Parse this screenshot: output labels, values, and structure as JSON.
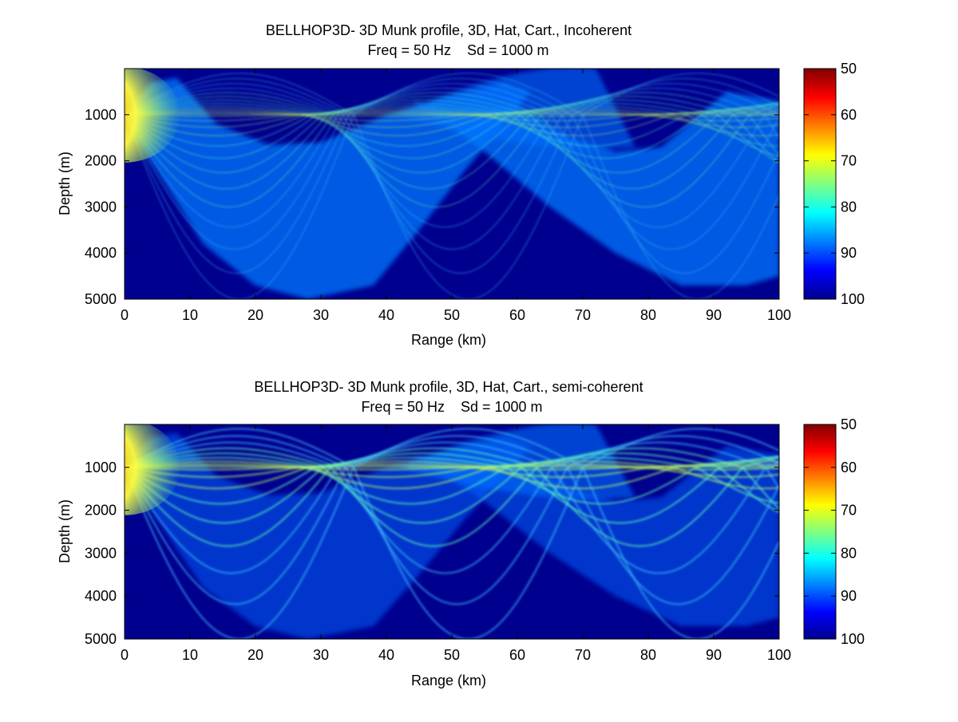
{
  "colors": {
    "background": "#00008f",
    "colormap": "jet",
    "colormap_stops": [
      "#00008f",
      "#0000ff",
      "#0080ff",
      "#00ffff",
      "#80ff80",
      "#ffff00",
      "#ff8000",
      "#ff0000",
      "#800000"
    ]
  },
  "chart_data": [
    {
      "type": "heatmap",
      "title": "BELLHOP3D- 3D Munk profile, 3D, Hat, Cart., Incoherent",
      "subtitle": "Freq = 50 Hz    Sd = 1000 m",
      "xlabel": "Range (km)",
      "ylabel": "Depth (m)",
      "xlim": [
        0,
        100
      ],
      "ylim": [
        0,
        5000
      ],
      "y_reversed": true,
      "xticks": [
        0,
        10,
        20,
        30,
        40,
        50,
        60,
        70,
        80,
        90,
        100
      ],
      "yticks": [
        1000,
        2000,
        3000,
        4000,
        5000
      ],
      "colorbar": {
        "ticks": [
          50,
          60,
          70,
          80,
          90,
          100
        ],
        "clim": [
          50,
          100
        ],
        "reversed": true
      },
      "source": {
        "range_km": 0,
        "depth_m": 1000,
        "peak_loss_db": 50
      },
      "caustic_depths_m": [
        1000,
        1700
      ],
      "field_description": "transmission loss in dB; smooth incoherent ray fan with caustics converging near 50 km and 100 km",
      "grid": false,
      "legend": "none"
    },
    {
      "type": "heatmap",
      "title": "BELLHOP3D- 3D Munk profile, 3D, Hat, Cart., semi-coherent",
      "subtitle": "Freq = 50 Hz    Sd = 1000 m",
      "xlabel": "Range (km)",
      "ylabel": "Depth (m)",
      "xlim": [
        0,
        100
      ],
      "ylim": [
        0,
        5000
      ],
      "y_reversed": true,
      "xticks": [
        0,
        10,
        20,
        30,
        40,
        50,
        60,
        70,
        80,
        90,
        100
      ],
      "yticks": [
        1000,
        2000,
        3000,
        4000,
        5000
      ],
      "colorbar": {
        "ticks": [
          50,
          60,
          70,
          80,
          90,
          100
        ],
        "clim": [
          50,
          100
        ],
        "reversed": true
      },
      "source": {
        "range_km": 0,
        "depth_m": 1000,
        "peak_loss_db": 50
      },
      "caustic_depths_m": [
        1000,
        1700
      ],
      "field_description": "transmission loss in dB; semi-coherent ray fan showing distinct ray bands",
      "grid": false,
      "legend": "none"
    }
  ]
}
